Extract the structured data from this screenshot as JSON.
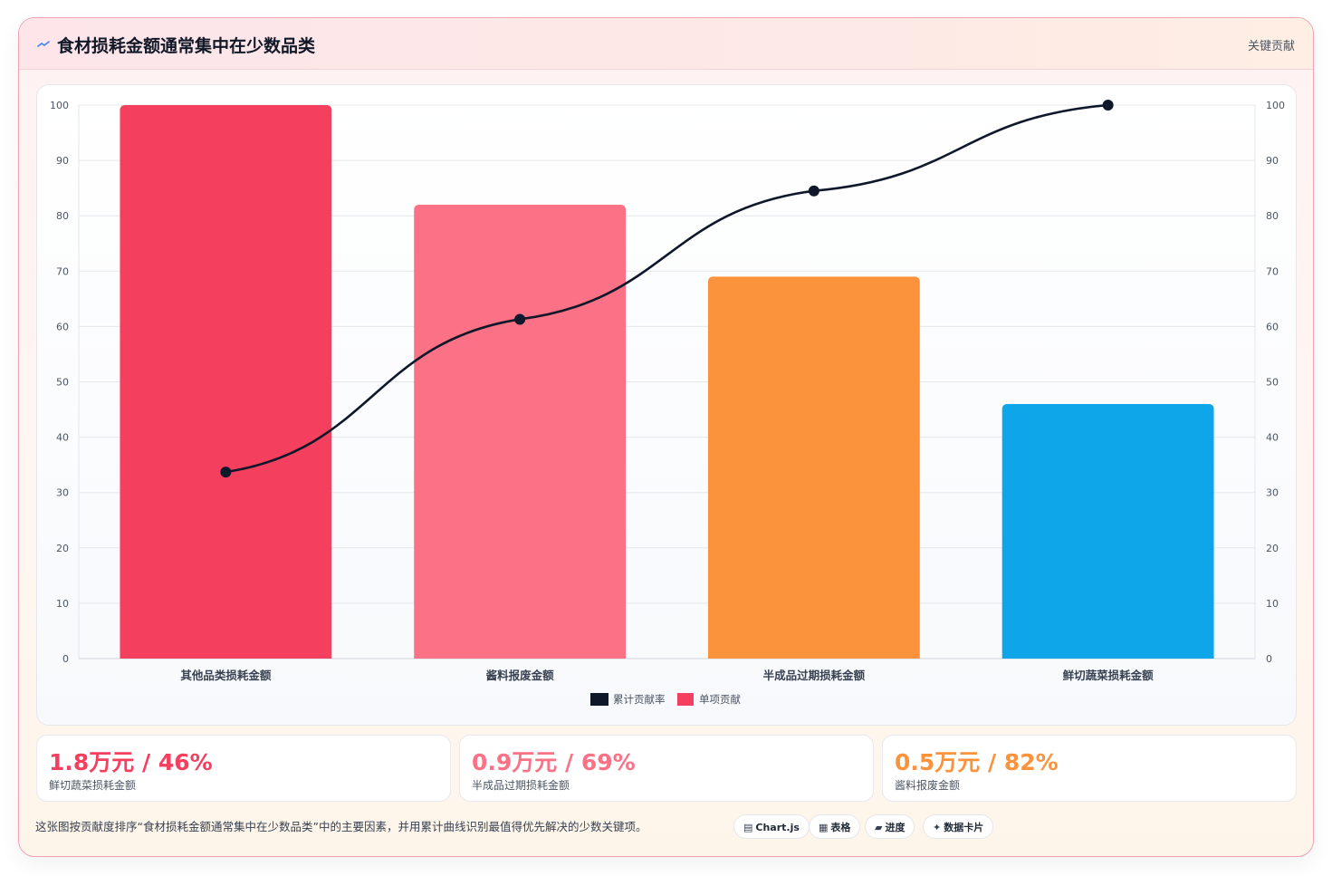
{
  "header": {
    "title": "食材损耗金额通常集中在少数品类",
    "tag": "关键贡献"
  },
  "colors": {
    "bar1": "#f43f5e",
    "bar2": "#fb7185",
    "bar3": "#fb923c",
    "bar4": "#0ea5e9",
    "line": "#0f172a"
  },
  "chart_data": {
    "type": "bar",
    "categories": [
      "其他品类损耗金额",
      "酱料报废金额",
      "半成品过期损耗金额",
      "鲜切蔬菜损耗金额"
    ],
    "series": [
      {
        "name": "单项贡献",
        "type": "bar",
        "axis": "left",
        "values": [
          100,
          82,
          69,
          46
        ]
      },
      {
        "name": "累计贡献率",
        "type": "line",
        "axis": "right",
        "values": [
          33.7,
          61.3,
          84.5,
          100
        ]
      }
    ],
    "ylim_left": [
      0,
      100
    ],
    "ylim_right": [
      0,
      100
    ],
    "yticks": [
      0,
      10,
      20,
      30,
      40,
      50,
      60,
      70,
      80,
      90,
      100
    ],
    "grid": true,
    "legend_position": "bottom",
    "legend": [
      "累计贡献率",
      "单项贡献"
    ]
  },
  "stats": [
    {
      "value": "1.8万元 / 46%",
      "label": "鲜切蔬菜损耗金额",
      "color": "#f43f5e"
    },
    {
      "value": "0.9万元 / 69%",
      "label": "半成品过期损耗金额",
      "color": "#fb7185"
    },
    {
      "value": "0.5万元 / 82%",
      "label": "酱料报废金额",
      "color": "#fb923c"
    }
  ],
  "footnote": "这张图按贡献度排序“食材损耗金额通常集中在少数品类”中的主要因素，并用累计曲线识别最值得优先解决的少数关键项。",
  "chips": [
    {
      "icon": "▤",
      "label": "Chart.js",
      "icon_name": "chart-icon"
    },
    {
      "icon": "▦",
      "label": "表格",
      "icon_name": "table-icon"
    },
    {
      "icon": "▰",
      "label": "进度",
      "icon_name": "progress-icon"
    },
    {
      "icon": "✦",
      "label": "数据卡片",
      "icon_name": "card-icon"
    }
  ]
}
